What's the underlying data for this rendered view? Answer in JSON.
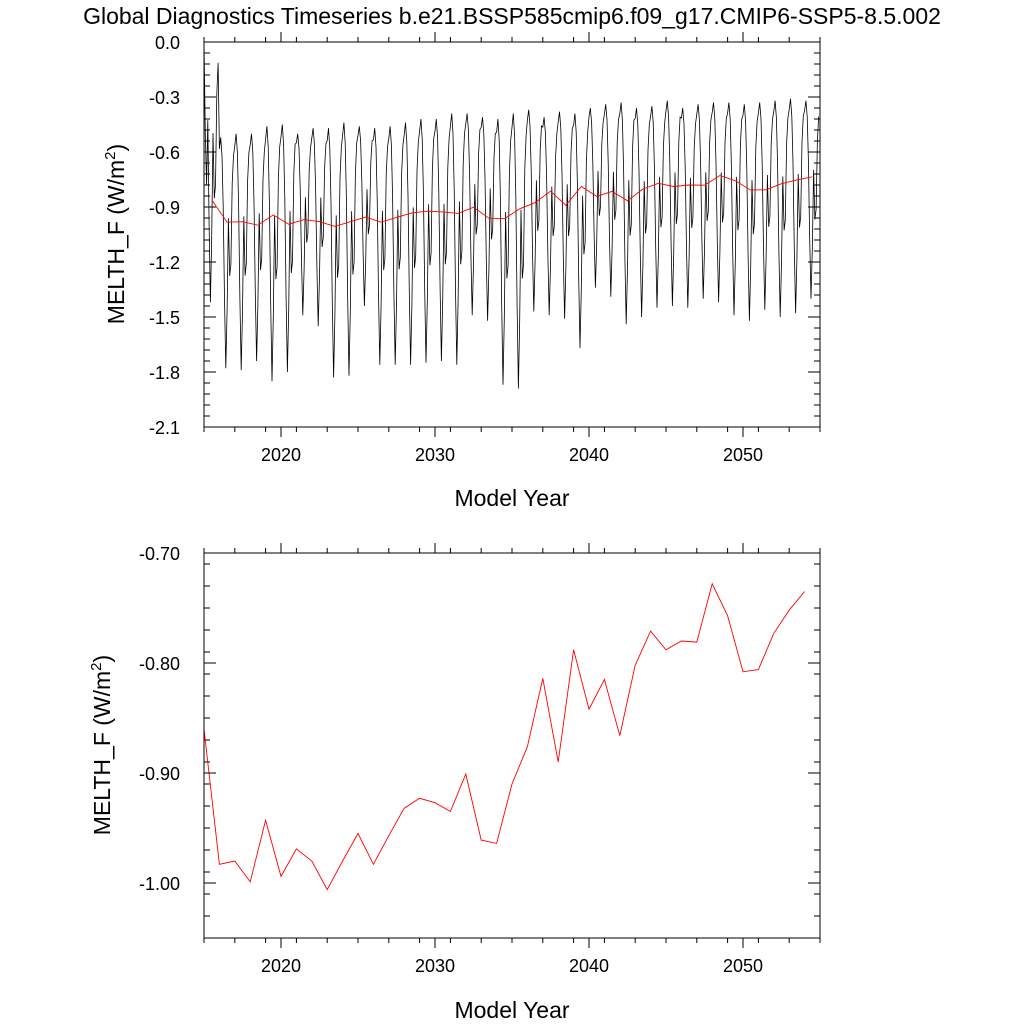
{
  "title": "Global Diagnostics Timeseries b.e21.BSSP585cmip6.f09_g17.CMIP6-SSP5-8.5.002",
  "colors": {
    "monthly": "#000000",
    "annual": "#ff0000",
    "axis": "#000000"
  },
  "chart_data": [
    {
      "type": "line",
      "xlabel": "Model Year",
      "ylabel_main": "MELTH_F (W/m",
      "ylabel_sup": "2",
      "ylabel_end": ")",
      "xlim": [
        2015,
        2055
      ],
      "ylim": [
        -2.1,
        0.0
      ],
      "xticks": [
        2020,
        2030,
        2040,
        2050
      ],
      "xtick_labels": [
        "2020",
        "2030",
        "2040",
        "2050"
      ],
      "yticks": [
        0.0,
        -0.3,
        -0.6,
        -0.9,
        -1.2,
        -1.5,
        -1.8,
        -2.1
      ],
      "ytick_labels": [
        "0.0",
        "-0.3",
        "-0.6",
        "-0.9",
        "-1.2",
        "-1.5",
        "-1.8",
        "-2.1"
      ],
      "monthly_series": {
        "color": "#000000",
        "start": 2015.0,
        "step": 0.0833333,
        "annual_peaks": [
          0.0,
          -0.52,
          -0.5,
          -0.5,
          -0.46,
          -0.45,
          -0.5,
          -0.47,
          -0.47,
          -0.44,
          -0.46,
          -0.47,
          -0.46,
          -0.44,
          -0.42,
          -0.42,
          -0.39,
          -0.39,
          -0.41,
          -0.42,
          -0.39,
          -0.37,
          -0.41,
          -0.38,
          -0.39,
          -0.36,
          -0.34,
          -0.33,
          -0.36,
          -0.35,
          -0.32,
          -0.36,
          -0.34,
          -0.33,
          -0.33,
          -0.34,
          -0.33,
          -0.32,
          -0.31,
          -0.32
        ],
        "annual_troughs": [
          -1.42,
          -1.78,
          -1.79,
          -1.74,
          -1.85,
          -1.8,
          -1.49,
          -1.55,
          -1.83,
          -1.82,
          -1.44,
          -1.76,
          -1.76,
          -1.76,
          -1.75,
          -1.74,
          -1.76,
          -1.49,
          -1.52,
          -1.87,
          -1.89,
          -1.47,
          -1.49,
          -1.51,
          -1.67,
          -1.34,
          -1.39,
          -1.54,
          -1.5,
          -1.45,
          -1.44,
          -1.45,
          -1.4,
          -1.42,
          -1.49,
          -1.52,
          -1.46,
          -1.5,
          -1.48,
          -1.4
        ]
      },
      "annual_series": {
        "color": "#ff0000",
        "x": [
          2015.5,
          2016.5,
          2017.5,
          2018.5,
          2019.5,
          2020.5,
          2021.5,
          2022.5,
          2023.5,
          2024.5,
          2025.5,
          2026.5,
          2027.5,
          2028.5,
          2029.5,
          2030.5,
          2031.5,
          2032.5,
          2033.5,
          2034.5,
          2035.5,
          2036.5,
          2037.5,
          2038.5,
          2039.5,
          2040.5,
          2041.5,
          2042.5,
          2043.5,
          2044.5,
          2045.5,
          2046.5,
          2047.5,
          2048.5,
          2049.5,
          2050.5,
          2051.5,
          2052.5,
          2053.5,
          2054.5
        ],
        "values": [
          -0.86,
          -0.983,
          -0.98,
          -0.999,
          -0.943,
          -0.994,
          -0.969,
          -0.98,
          -1.006,
          -0.98,
          -0.955,
          -0.983,
          -0.957,
          -0.932,
          -0.923,
          -0.927,
          -0.935,
          -0.901,
          -0.961,
          -0.964,
          -0.91,
          -0.876,
          -0.814,
          -0.89,
          -0.788,
          -0.842,
          -0.815,
          -0.866,
          -0.802,
          -0.771,
          -0.788,
          -0.78,
          -0.781,
          -0.728,
          -0.757,
          -0.808,
          -0.806,
          -0.773,
          -0.752,
          -0.735
        ]
      }
    },
    {
      "type": "line",
      "xlabel": "Model Year",
      "ylabel_main": "MELTH_F (W/m",
      "ylabel_sup": "2",
      "ylabel_end": ")",
      "xlim": [
        2015,
        2055
      ],
      "ylim": [
        -1.05,
        -0.7
      ],
      "xticks": [
        2020,
        2030,
        2040,
        2050
      ],
      "xtick_labels": [
        "2020",
        "2030",
        "2040",
        "2050"
      ],
      "yticks": [
        -0.7,
        -0.8,
        -0.9,
        -1.0
      ],
      "ytick_labels": [
        "-0.70",
        "-0.80",
        "-0.90",
        "-1.00"
      ],
      "annual_series": {
        "color": "#ff0000",
        "x": [
          2015.0,
          2016.0,
          2017.0,
          2018.0,
          2019.0,
          2020.0,
          2021.0,
          2022.0,
          2023.0,
          2024.0,
          2025.0,
          2026.0,
          2027.0,
          2028.0,
          2029.0,
          2030.0,
          2031.0,
          2032.0,
          2033.0,
          2034.0,
          2035.0,
          2036.0,
          2037.0,
          2038.0,
          2039.0,
          2040.0,
          2041.0,
          2042.0,
          2043.0,
          2044.0,
          2045.0,
          2046.0,
          2047.0,
          2048.0,
          2049.0,
          2050.0,
          2051.0,
          2052.0,
          2053.0,
          2054.0
        ],
        "values": [
          -0.86,
          -0.983,
          -0.98,
          -0.999,
          -0.943,
          -0.994,
          -0.969,
          -0.98,
          -1.006,
          -0.98,
          -0.955,
          -0.983,
          -0.957,
          -0.932,
          -0.923,
          -0.927,
          -0.935,
          -0.901,
          -0.961,
          -0.964,
          -0.91,
          -0.876,
          -0.814,
          -0.89,
          -0.788,
          -0.842,
          -0.815,
          -0.866,
          -0.802,
          -0.771,
          -0.788,
          -0.78,
          -0.781,
          -0.728,
          -0.757,
          -0.808,
          -0.806,
          -0.773,
          -0.752,
          -0.735
        ]
      }
    }
  ]
}
